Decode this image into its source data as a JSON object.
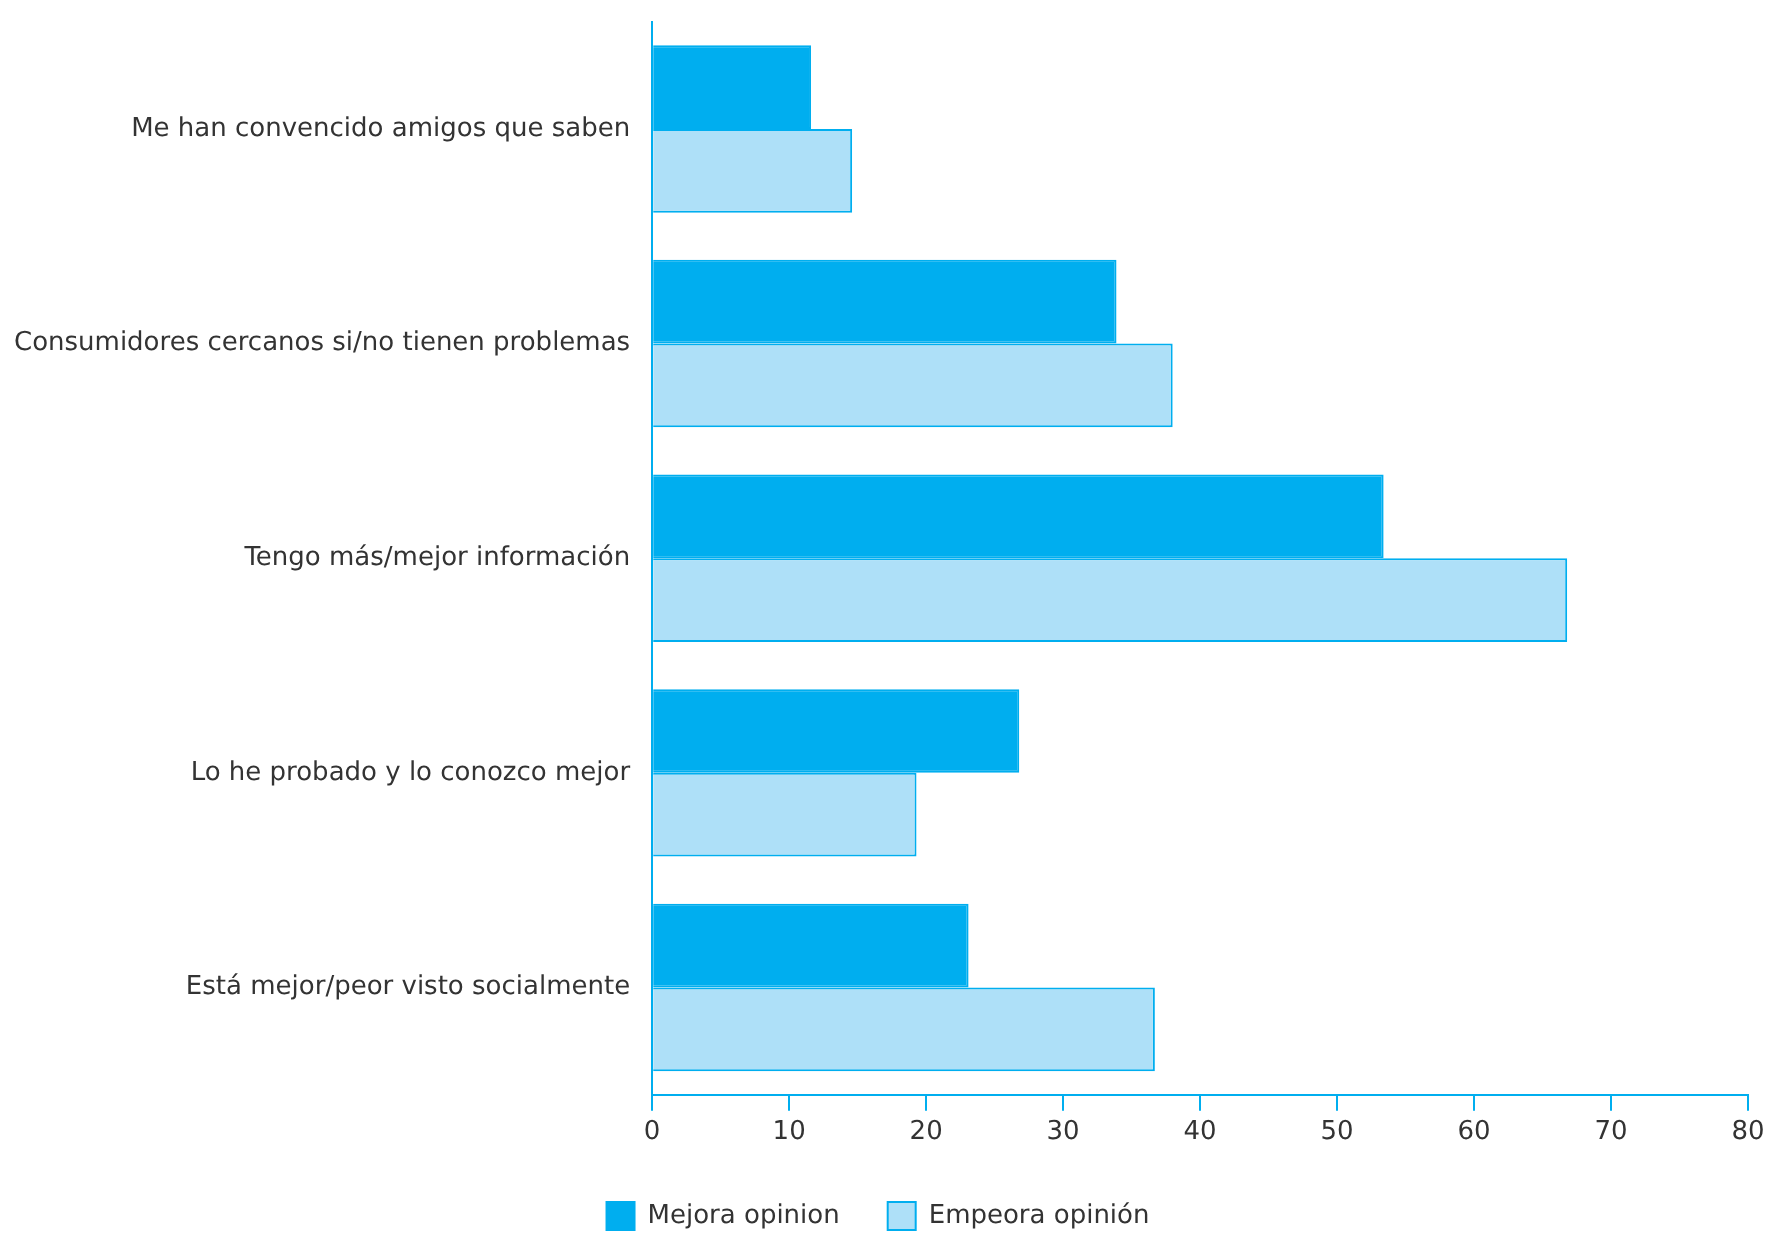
{
  "chart_data": {
    "type": "bar",
    "orientation": "horizontal",
    "categories": [
      "Me han convencido amigos que saben",
      "Consumidores cercanos si/no tienen problemas",
      "Tengo más/mejor información",
      "Lo he probado y lo conozco mejor",
      "Está mejor/peor visto socialmente"
    ],
    "series": [
      {
        "name": "Mejora opinion",
        "color": "#00aeef",
        "values": [
          11.6,
          33.9,
          53.4,
          26.8,
          23.1
        ]
      },
      {
        "name": "Empeora opinión",
        "color": "#aee0f8",
        "values": [
          14.6,
          38.0,
          66.8,
          19.3,
          36.7
        ]
      }
    ],
    "xlim": [
      0,
      80
    ],
    "xticks": [
      0,
      10,
      20,
      30,
      40,
      50,
      60,
      70,
      80
    ],
    "grid": false,
    "legend": "bottom"
  }
}
